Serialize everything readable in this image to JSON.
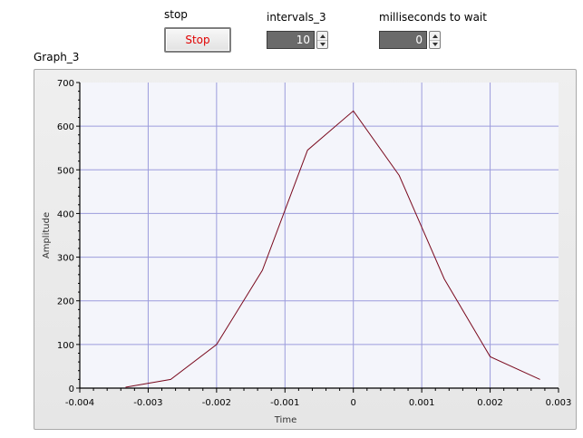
{
  "controls": {
    "stop_label": "stop",
    "stop_button_text": "Stop",
    "intervals_label": "intervals_3",
    "intervals_value": "10",
    "wait_label": "milliseconds to wait",
    "wait_value": "0"
  },
  "graph": {
    "title": "Graph_3",
    "colors": {
      "plot_bg": "#f4f5fb",
      "grid": "#9c9cdc",
      "trace": "#7a0a1e"
    }
  },
  "chart_data": {
    "type": "line",
    "title": "Graph_3",
    "xlabel": "Time",
    "ylabel": "Amplitude",
    "xlim": [
      -0.004,
      0.003
    ],
    "ylim": [
      0,
      700
    ],
    "grid": true,
    "x_ticks": [
      "-0.004",
      "-0.003",
      "-0.002",
      "-0.001",
      "0",
      "0.001",
      "0.002",
      "0.003"
    ],
    "y_ticks": [
      "0",
      "100",
      "200",
      "300",
      "400",
      "500",
      "600",
      "700"
    ],
    "series": [
      {
        "x": [
          -0.00333,
          -0.00267,
          -0.002,
          -0.00133,
          -0.00067,
          0,
          0.00067,
          0.00133,
          0.002,
          0.00273
        ],
        "y": [
          2,
          20,
          100,
          270,
          545,
          635,
          487,
          250,
          72,
          20
        ]
      }
    ]
  }
}
